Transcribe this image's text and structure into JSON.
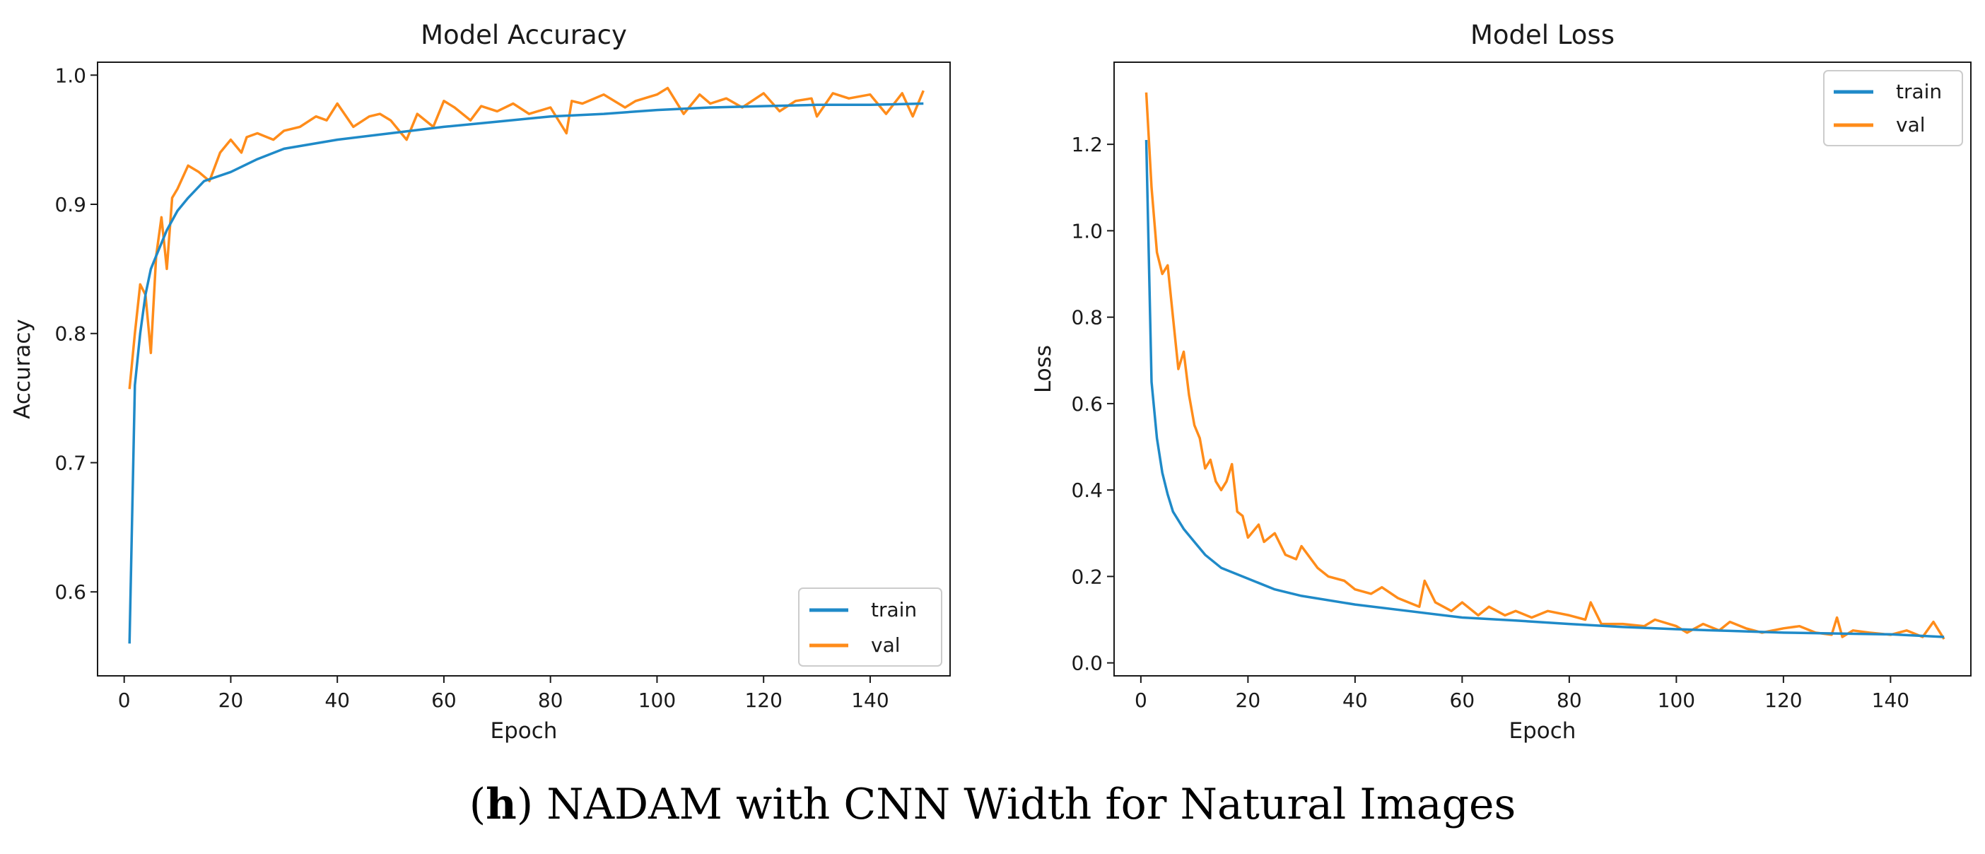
{
  "figure": {
    "caption_open": "(",
    "caption_letter": "h",
    "caption_close": ")",
    "caption_text": " NADAM with CNN Width for Natural Images"
  },
  "colors": {
    "train": "#1f8ac8",
    "val": "#ff8c1a"
  },
  "chart_data": [
    {
      "type": "line",
      "title": "Model Accuracy",
      "xlabel": "Epoch",
      "ylabel": "Accuracy",
      "xlim": [
        -5,
        155
      ],
      "ylim": [
        0.535,
        1.01
      ],
      "xticks": [
        0,
        20,
        40,
        60,
        80,
        100,
        120,
        140
      ],
      "yticks": [
        0.6,
        0.7,
        0.8,
        0.9,
        1.0
      ],
      "ytick_labels": [
        "0.6",
        "0.7",
        "0.8",
        "0.9",
        "1.0"
      ],
      "legend_position": "lower-right",
      "series": [
        {
          "name": "train",
          "x": [
            1,
            2,
            3,
            4,
            5,
            6,
            8,
            10,
            12,
            15,
            20,
            25,
            30,
            40,
            50,
            60,
            70,
            80,
            90,
            100,
            110,
            120,
            130,
            140,
            150
          ],
          "values": [
            0.56,
            0.76,
            0.8,
            0.83,
            0.85,
            0.86,
            0.88,
            0.895,
            0.905,
            0.918,
            0.925,
            0.935,
            0.943,
            0.95,
            0.955,
            0.96,
            0.964,
            0.968,
            0.97,
            0.973,
            0.975,
            0.976,
            0.977,
            0.977,
            0.978
          ]
        },
        {
          "name": "val",
          "x": [
            1,
            2,
            3,
            4,
            5,
            6,
            7,
            8,
            9,
            10,
            12,
            14,
            16,
            18,
            20,
            22,
            23,
            25,
            28,
            30,
            33,
            36,
            38,
            40,
            43,
            46,
            48,
            50,
            52,
            53,
            55,
            58,
            60,
            62,
            65,
            67,
            70,
            73,
            76,
            80,
            83,
            84,
            86,
            90,
            94,
            96,
            100,
            102,
            105,
            108,
            110,
            113,
            116,
            120,
            123,
            126,
            129,
            130,
            133,
            136,
            140,
            143,
            146,
            148,
            150
          ],
          "values": [
            0.757,
            0.8,
            0.838,
            0.83,
            0.785,
            0.86,
            0.89,
            0.85,
            0.905,
            0.912,
            0.93,
            0.925,
            0.918,
            0.94,
            0.95,
            0.94,
            0.952,
            0.955,
            0.95,
            0.957,
            0.96,
            0.968,
            0.965,
            0.978,
            0.96,
            0.968,
            0.97,
            0.965,
            0.955,
            0.95,
            0.97,
            0.96,
            0.98,
            0.975,
            0.965,
            0.976,
            0.972,
            0.978,
            0.97,
            0.975,
            0.955,
            0.98,
            0.978,
            0.985,
            0.975,
            0.98,
            0.985,
            0.99,
            0.97,
            0.985,
            0.978,
            0.982,
            0.975,
            0.986,
            0.972,
            0.98,
            0.982,
            0.968,
            0.986,
            0.982,
            0.985,
            0.97,
            0.986,
            0.968,
            0.988
          ]
        }
      ]
    },
    {
      "type": "line",
      "title": "Model Loss",
      "xlabel": "Epoch",
      "ylabel": "Loss",
      "xlim": [
        -5,
        155
      ],
      "ylim": [
        -0.03,
        1.39
      ],
      "xticks": [
        0,
        20,
        40,
        60,
        80,
        100,
        120,
        140
      ],
      "yticks": [
        0.0,
        0.2,
        0.4,
        0.6,
        0.8,
        1.0,
        1.2
      ],
      "ytick_labels": [
        "0.0",
        "0.2",
        "0.4",
        "0.6",
        "0.8",
        "1.0",
        "1.2"
      ],
      "legend_position": "upper-right",
      "series": [
        {
          "name": "train",
          "x": [
            1,
            2,
            3,
            4,
            5,
            6,
            8,
            10,
            12,
            15,
            20,
            25,
            30,
            40,
            50,
            60,
            70,
            80,
            90,
            100,
            110,
            120,
            130,
            140,
            150
          ],
          "values": [
            1.21,
            0.65,
            0.52,
            0.44,
            0.39,
            0.35,
            0.31,
            0.28,
            0.25,
            0.22,
            0.195,
            0.17,
            0.155,
            0.135,
            0.12,
            0.105,
            0.098,
            0.09,
            0.083,
            0.078,
            0.074,
            0.07,
            0.068,
            0.066,
            0.06
          ]
        },
        {
          "name": "val",
          "x": [
            1,
            2,
            3,
            4,
            5,
            6,
            7,
            8,
            9,
            10,
            11,
            12,
            13,
            14,
            15,
            16,
            17,
            18,
            19,
            20,
            22,
            23,
            25,
            27,
            29,
            30,
            33,
            35,
            38,
            40,
            43,
            45,
            48,
            50,
            52,
            53,
            55,
            58,
            60,
            63,
            65,
            68,
            70,
            73,
            76,
            80,
            83,
            84,
            86,
            90,
            94,
            96,
            100,
            102,
            105,
            108,
            110,
            113,
            116,
            120,
            123,
            126,
            129,
            130,
            131,
            133,
            136,
            140,
            143,
            146,
            148,
            150
          ],
          "values": [
            1.32,
            1.1,
            0.95,
            0.9,
            0.92,
            0.8,
            0.68,
            0.72,
            0.62,
            0.55,
            0.52,
            0.45,
            0.47,
            0.42,
            0.4,
            0.42,
            0.46,
            0.35,
            0.34,
            0.29,
            0.32,
            0.28,
            0.3,
            0.25,
            0.24,
            0.27,
            0.22,
            0.2,
            0.19,
            0.17,
            0.16,
            0.175,
            0.15,
            0.14,
            0.13,
            0.19,
            0.14,
            0.12,
            0.14,
            0.11,
            0.13,
            0.11,
            0.12,
            0.105,
            0.12,
            0.11,
            0.1,
            0.14,
            0.09,
            0.09,
            0.085,
            0.1,
            0.085,
            0.07,
            0.09,
            0.075,
            0.095,
            0.08,
            0.07,
            0.08,
            0.085,
            0.07,
            0.065,
            0.105,
            0.06,
            0.075,
            0.07,
            0.065,
            0.075,
            0.06,
            0.095,
            0.055
          ]
        }
      ]
    }
  ]
}
